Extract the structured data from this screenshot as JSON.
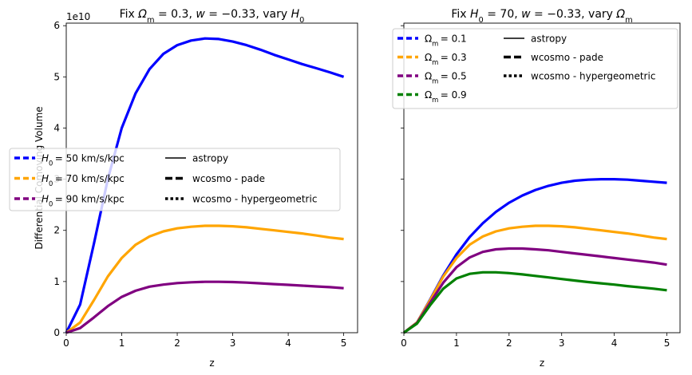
{
  "chart_data": [
    {
      "type": "line",
      "title": "Fix Ωm = 0.3, w = −0.33, vary H0",
      "title_parts": [
        "Fix ",
        "Ω",
        "m",
        " = 0.3, ",
        "w",
        " = −0.33, vary ",
        "H",
        "0"
      ],
      "xlabel": "z",
      "ylabel": "Differential Comoving Volume",
      "scale_label": "1e10",
      "xlim": [
        0,
        5.25
      ],
      "ylim": [
        0,
        6.05
      ],
      "xticks": [
        "0",
        "1",
        "2",
        "3",
        "4",
        "5"
      ],
      "yticks": [
        "0",
        "1",
        "2",
        "3",
        "4",
        "5",
        "6"
      ],
      "grid": false,
      "legend": {
        "placement": "center-left",
        "series_entries": [
          {
            "label": "= 50 km/s/kpc",
            "prefix": "H",
            "sub": "0",
            "color": "#0000ff"
          },
          {
            "label": "= 70 km/s/kpc",
            "prefix": "H",
            "sub": "0",
            "color": "#ffa500"
          },
          {
            "label": "= 90 km/s/kpc",
            "prefix": "H",
            "sub": "0",
            "color": "#800080"
          }
        ],
        "style_entries": [
          {
            "label": "astropy",
            "style": "solid"
          },
          {
            "label": "wcosmo - pade",
            "style": "dashed"
          },
          {
            "label": "wcosmo - hypergeometric",
            "style": "dotted"
          }
        ]
      },
      "series": [
        {
          "color": "#0000ff",
          "x": [
            0,
            0.25,
            0.5,
            0.75,
            1,
            1.25,
            1.5,
            1.75,
            2,
            2.25,
            2.5,
            2.75,
            3,
            3.25,
            3.5,
            3.75,
            4,
            4.25,
            4.5,
            4.75,
            5
          ],
          "y": [
            0,
            0.55,
            1.75,
            3.0,
            4.0,
            4.68,
            5.15,
            5.45,
            5.62,
            5.71,
            5.75,
            5.74,
            5.69,
            5.62,
            5.53,
            5.43,
            5.34,
            5.25,
            5.17,
            5.09,
            5.0
          ]
        },
        {
          "color": "#ffa500",
          "x": [
            0,
            0.25,
            0.5,
            0.75,
            1,
            1.25,
            1.5,
            1.75,
            2,
            2.25,
            2.5,
            2.75,
            3,
            3.25,
            3.5,
            3.75,
            4,
            4.25,
            4.5,
            4.75,
            5
          ],
          "y": [
            0,
            0.2,
            0.64,
            1.1,
            1.46,
            1.72,
            1.88,
            1.98,
            2.04,
            2.07,
            2.09,
            2.09,
            2.08,
            2.06,
            2.03,
            2.0,
            1.97,
            1.94,
            1.9,
            1.86,
            1.83
          ]
        },
        {
          "color": "#800080",
          "x": [
            0,
            0.25,
            0.5,
            0.75,
            1,
            1.25,
            1.5,
            1.75,
            2,
            2.25,
            2.5,
            2.75,
            3,
            3.25,
            3.5,
            3.75,
            4,
            4.25,
            4.5,
            4.75,
            5
          ],
          "y": [
            0,
            0.09,
            0.3,
            0.52,
            0.7,
            0.82,
            0.9,
            0.94,
            0.97,
            0.985,
            0.995,
            0.995,
            0.99,
            0.98,
            0.965,
            0.95,
            0.935,
            0.92,
            0.905,
            0.89,
            0.87
          ]
        }
      ]
    },
    {
      "type": "line",
      "title": "Fix H0 = 70, w = −0.33, vary Ωm",
      "title_parts": [
        "Fix ",
        "H",
        "0",
        " = 70, ",
        "w",
        " = −0.33, vary ",
        "Ω",
        "m"
      ],
      "xlabel": "z",
      "ylabel": "",
      "xlim": [
        0,
        5.25
      ],
      "ylim": [
        0,
        6.05
      ],
      "xticks": [
        "0",
        "1",
        "2",
        "3",
        "4",
        "5"
      ],
      "yticks": [],
      "grid": false,
      "legend": {
        "placement": "top",
        "series_entries": [
          {
            "label": "= 0.1",
            "prefix": "Ω",
            "sub": "m",
            "color": "#0000ff"
          },
          {
            "label": "= 0.3",
            "prefix": "Ω",
            "sub": "m",
            "color": "#ffa500"
          },
          {
            "label": "= 0.5",
            "prefix": "Ω",
            "sub": "m",
            "color": "#800080"
          },
          {
            "label": "= 0.9",
            "prefix": "Ω",
            "sub": "m",
            "color": "#008000"
          }
        ],
        "style_entries": [
          {
            "label": "astropy",
            "style": "solid"
          },
          {
            "label": "wcosmo - pade",
            "style": "dashed"
          },
          {
            "label": "wcosmo - hypergeometric",
            "style": "dotted"
          }
        ]
      },
      "series": [
        {
          "color": "#0000ff",
          "x": [
            0,
            0.25,
            0.5,
            0.75,
            1,
            1.25,
            1.5,
            1.75,
            2,
            2.25,
            2.5,
            2.75,
            3,
            3.25,
            3.5,
            3.75,
            4,
            4.25,
            4.5,
            4.75,
            5
          ],
          "y": [
            0,
            0.2,
            0.65,
            1.12,
            1.53,
            1.87,
            2.14,
            2.36,
            2.54,
            2.68,
            2.79,
            2.87,
            2.93,
            2.97,
            2.99,
            3.0,
            3.0,
            2.99,
            2.97,
            2.95,
            2.93
          ]
        },
        {
          "color": "#ffa500",
          "x": [
            0,
            0.25,
            0.5,
            0.75,
            1,
            1.25,
            1.5,
            1.75,
            2,
            2.25,
            2.5,
            2.75,
            3,
            3.25,
            3.5,
            3.75,
            4,
            4.25,
            4.5,
            4.75,
            5
          ],
          "y": [
            0,
            0.2,
            0.64,
            1.1,
            1.46,
            1.72,
            1.88,
            1.98,
            2.04,
            2.07,
            2.09,
            2.09,
            2.08,
            2.06,
            2.03,
            2.0,
            1.97,
            1.94,
            1.9,
            1.86,
            1.83
          ]
        },
        {
          "color": "#800080",
          "x": [
            0,
            0.25,
            0.5,
            0.75,
            1,
            1.25,
            1.5,
            1.75,
            2,
            2.25,
            2.5,
            2.75,
            3,
            3.25,
            3.5,
            3.75,
            4,
            4.25,
            4.5,
            4.75,
            5
          ],
          "y": [
            0,
            0.19,
            0.59,
            0.98,
            1.28,
            1.47,
            1.58,
            1.63,
            1.645,
            1.645,
            1.63,
            1.61,
            1.58,
            1.55,
            1.52,
            1.49,
            1.46,
            1.43,
            1.4,
            1.37,
            1.33
          ]
        },
        {
          "color": "#008000",
          "x": [
            0,
            0.25,
            0.5,
            0.75,
            1,
            1.25,
            1.5,
            1.75,
            2,
            2.25,
            2.5,
            2.75,
            3,
            3.25,
            3.5,
            3.75,
            4,
            4.25,
            4.5,
            4.75,
            5
          ],
          "y": [
            0,
            0.18,
            0.54,
            0.86,
            1.06,
            1.15,
            1.18,
            1.18,
            1.165,
            1.14,
            1.11,
            1.08,
            1.05,
            1.02,
            0.99,
            0.965,
            0.94,
            0.91,
            0.885,
            0.86,
            0.83
          ]
        }
      ]
    }
  ]
}
